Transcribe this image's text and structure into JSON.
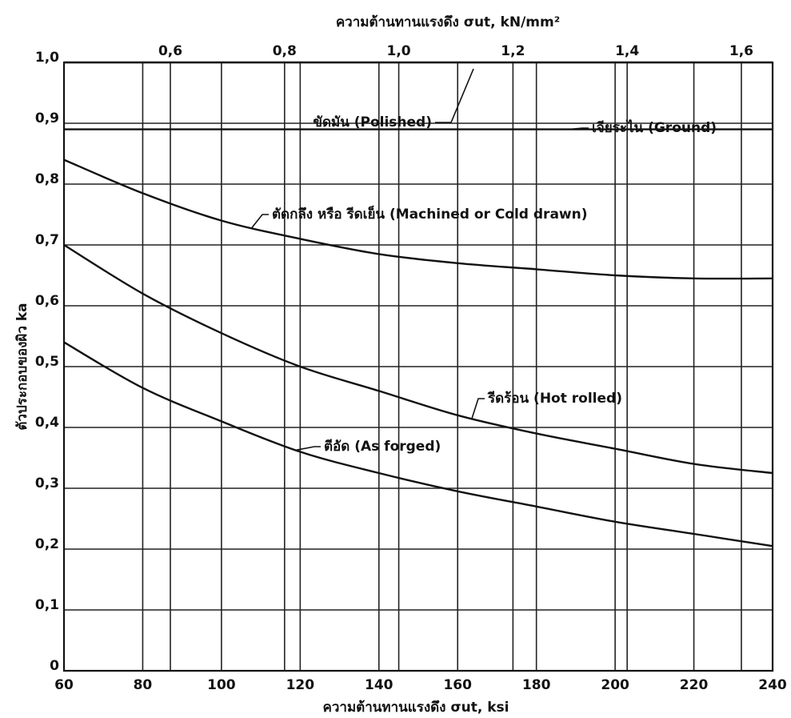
{
  "chart_data": {
    "type": "line",
    "x_label": "ความต้านทานแรงดึง σut, ksi",
    "x2_label": "ความต้านทานแรงดึง σut, kN/mm²",
    "y_label": "ตัวประกอบของผิว ka",
    "x": [
      60,
      80,
      100,
      120,
      140,
      160,
      180,
      200,
      220,
      240
    ],
    "xlim": [
      60,
      240
    ],
    "xticks": [
      60,
      80,
      100,
      120,
      140,
      160,
      180,
      200,
      220,
      240
    ],
    "x2lim": [
      0.4137,
      1.6547
    ],
    "x2ticks": [
      {
        "value": 0.6,
        "label": "0,6"
      },
      {
        "value": 0.8,
        "label": "0,8"
      },
      {
        "value": 1.0,
        "label": "1,0"
      },
      {
        "value": 1.2,
        "label": "1,2"
      },
      {
        "value": 1.4,
        "label": "1,4"
      },
      {
        "value": 1.6,
        "label": "1,6"
      }
    ],
    "ylim": [
      0,
      1.0
    ],
    "yticks": [
      0,
      {
        "value": 0.1,
        "label": "0,1"
      },
      {
        "value": 0.2,
        "label": "0,2"
      },
      {
        "value": 0.3,
        "label": "0,3"
      },
      {
        "value": 0.4,
        "label": "0,4"
      },
      {
        "value": 0.5,
        "label": "0,5"
      },
      {
        "value": 0.6,
        "label": "0,6"
      },
      {
        "value": 0.7,
        "label": "0,7"
      },
      {
        "value": 0.8,
        "label": "0,8"
      },
      {
        "value": 0.9,
        "label": "0,9"
      },
      {
        "value": 1.0,
        "label": "1,0"
      }
    ],
    "grid": true,
    "series": [
      {
        "name": "ขัดมัน (Polished)",
        "color": "#111111",
        "values": [
          1.0,
          1.0,
          1.0,
          1.0,
          1.0,
          1.0,
          1.0,
          1.0,
          1.0,
          1.0
        ]
      },
      {
        "name": "เจียระไน (Ground)",
        "color": "#111111",
        "values": [
          0.89,
          0.89,
          0.89,
          0.89,
          0.89,
          0.89,
          0.89,
          0.89,
          0.89,
          0.89
        ]
      },
      {
        "name": "ตัดกลึง หรือ รีดเย็น (Machined or Cold drawn)",
        "color": "#111111",
        "values": [
          0.84,
          0.785,
          0.74,
          0.71,
          0.685,
          0.67,
          0.66,
          0.65,
          0.645,
          0.645
        ]
      },
      {
        "name": "รีดร้อน (Hot rolled)",
        "color": "#111111",
        "values": [
          0.7,
          0.62,
          0.555,
          0.5,
          0.46,
          0.42,
          0.39,
          0.365,
          0.34,
          0.325
        ]
      },
      {
        "name": "ตีอัด (As forged)",
        "color": "#111111",
        "values": [
          0.54,
          0.465,
          0.41,
          0.36,
          0.325,
          0.295,
          0.27,
          0.245,
          0.225,
          0.205
        ]
      }
    ]
  }
}
